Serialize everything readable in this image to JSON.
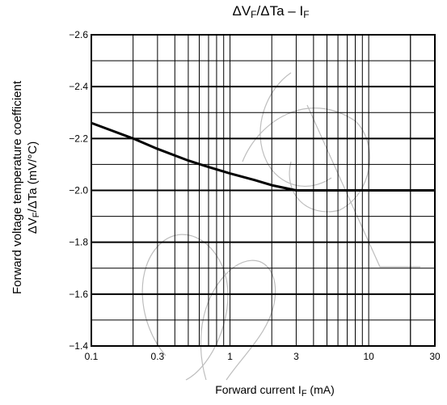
{
  "chart_data": {
    "type": "line",
    "title_main": "ΔV",
    "title_sub1": "F",
    "title_mid": "/ΔTa – I",
    "title_sub2": "F",
    "ylabel_line1": "Forward voltage temperature coefficient",
    "ylabel_pre": "ΔV",
    "ylabel_sub": "F",
    "ylabel_post": "/ΔTa   (mV/°C)",
    "xlabel_pre": "Forward current   I",
    "xlabel_sub": "F",
    "xlabel_post": "   (mA)",
    "x_scale": "log",
    "xlim": [
      0.1,
      30
    ],
    "ylim": [
      -2.6,
      -1.4
    ],
    "y_reversed": true,
    "x_ticks": [
      0.1,
      0.3,
      1,
      3,
      10,
      30
    ],
    "x_tick_labels": [
      "0.1",
      "0.3",
      "1",
      "3",
      "10",
      "30"
    ],
    "y_ticks": [
      -2.6,
      -2.4,
      -2.2,
      -2.0,
      -1.8,
      -1.6,
      -1.4
    ],
    "y_tick_labels": [
      "−2.6",
      "−2.4",
      "−2.2",
      "−2.0",
      "−1.8",
      "−1.6",
      "−1.4"
    ],
    "grid": true,
    "series": [
      {
        "x": [
          0.1,
          0.2,
          0.3,
          0.5,
          0.7,
          1,
          1.5,
          2,
          3,
          5,
          10,
          30
        ],
        "y": [
          -2.26,
          -2.2,
          -2.16,
          -2.115,
          -2.09,
          -2.065,
          -2.04,
          -2.02,
          -2.0,
          -2.0,
          -2.0,
          -2.0
        ]
      }
    ]
  },
  "watermark_text": "Obsolete"
}
